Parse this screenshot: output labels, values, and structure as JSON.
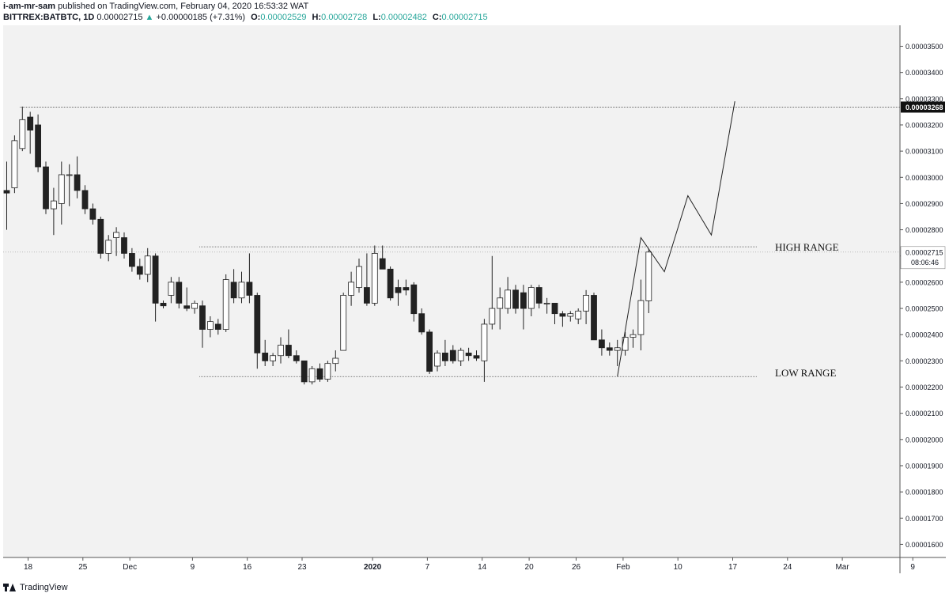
{
  "header": {
    "author": "i-am-mr-sam",
    "published": "published on TradingView.com, February 04, 2020 16:53:32 WAT",
    "symbol": "BITTREX:BATBTC, 1D",
    "close": "0.00002715",
    "change": "+0.00000185 (+7.31%)",
    "o_label": "O:",
    "o_value": "0.00002529",
    "h_label": "H:",
    "h_value": "0.00002728",
    "l_label": "L:",
    "l_value": "0.00002482",
    "c_label": "C:",
    "c_value": "0.00002715"
  },
  "footer": {
    "brand": "TradingView"
  },
  "colors": {
    "background": "#f2f2f2",
    "bull_body": "#ffffff",
    "bear_body": "#222222",
    "candle_outline": "#222222",
    "change_up": "#26a69a",
    "price_label_bg": "#111111"
  },
  "chart_data": {
    "type": "candlestick",
    "ylim": [
      1.55e-05,
      3.58e-05
    ],
    "y_ticks": [
      "0.00003500",
      "0.00003400",
      "0.00003300",
      "0.00003200",
      "0.00003100",
      "0.00003000",
      "0.00002900",
      "0.00002800",
      "0.00002700",
      "0.00002600",
      "0.00002500",
      "0.00002400",
      "0.00002300",
      "0.00002200",
      "0.00002100",
      "0.00002000",
      "0.00001900",
      "0.00001800",
      "0.00001700",
      "0.00001600"
    ],
    "x_ticks": [
      "18",
      "25",
      "Dec",
      "9",
      "16",
      "23",
      "2020",
      "7",
      "14",
      "20",
      "26",
      "Feb",
      "10",
      "17",
      "24",
      "Mar",
      "9"
    ],
    "x_tick_day_index": [
      0,
      7,
      13,
      21,
      28,
      35,
      44,
      51,
      58,
      64,
      70,
      76,
      83,
      90,
      97,
      104,
      113
    ],
    "price_label_current": "0.00002715",
    "countdown": "08:06:46",
    "price_label_target": "0.00003268",
    "annotations": {
      "high_range": {
        "text": "HIGH RANGE",
        "price": 2.735e-05,
        "from_day": 10,
        "to_day": 109
      },
      "low_range": {
        "text": "LOW RANGE",
        "price": 2.24e-05,
        "from_day": 10,
        "to_day": 109
      },
      "target_line": {
        "price": 3.268e-05,
        "from_day": 0,
        "to_day": 113
      }
    },
    "projection": [
      {
        "day": 78,
        "price": 2.24e-05
      },
      {
        "day": 81,
        "price": 2.77e-05
      },
      {
        "day": 84,
        "price": 2.64e-05
      },
      {
        "day": 87,
        "price": 2.93e-05
      },
      {
        "day": 90,
        "price": 2.78e-05
      },
      {
        "day": 93,
        "price": 3.29e-05
      }
    ],
    "candles": [
      {
        "o": 2.95e-05,
        "h": 3.06e-05,
        "l": 2.8e-05,
        "c": 2.94e-05
      },
      {
        "o": 2.96e-05,
        "h": 3.16e-05,
        "l": 2.94e-05,
        "c": 3.14e-05
      },
      {
        "o": 3.11e-05,
        "h": 3.27e-05,
        "l": 3.1e-05,
        "c": 3.22e-05
      },
      {
        "o": 3.23e-05,
        "h": 3.25e-05,
        "l": 3.09e-05,
        "c": 3.18e-05
      },
      {
        "o": 3.2e-05,
        "h": 3.24e-05,
        "l": 3.02e-05,
        "c": 3.04e-05
      },
      {
        "o": 3.04e-05,
        "h": 3.06e-05,
        "l": 2.86e-05,
        "c": 2.88e-05
      },
      {
        "o": 2.88e-05,
        "h": 2.96e-05,
        "l": 2.78e-05,
        "c": 2.91e-05
      },
      {
        "o": 2.9e-05,
        "h": 3.06e-05,
        "l": 2.82e-05,
        "c": 3.01e-05
      },
      {
        "o": 3.01e-05,
        "h": 3.05e-05,
        "l": 2.89e-05,
        "c": 3.01e-05
      },
      {
        "o": 3.01e-05,
        "h": 3.08e-05,
        "l": 2.92e-05,
        "c": 2.95e-05
      },
      {
        "o": 2.95e-05,
        "h": 2.97e-05,
        "l": 2.86e-05,
        "c": 2.88e-05
      },
      {
        "o": 2.88e-05,
        "h": 2.9e-05,
        "l": 2.82e-05,
        "c": 2.84e-05
      },
      {
        "o": 2.84e-05,
        "h": 2.85e-05,
        "l": 2.69e-05,
        "c": 2.71e-05
      },
      {
        "o": 2.71e-05,
        "h": 2.78e-05,
        "l": 2.68e-05,
        "c": 2.76e-05
      },
      {
        "o": 2.77e-05,
        "h": 2.81e-05,
        "l": 2.7e-05,
        "c": 2.79e-05
      },
      {
        "o": 2.77e-05,
        "h": 2.79e-05,
        "l": 2.69e-05,
        "c": 2.71e-05
      },
      {
        "o": 2.71e-05,
        "h": 2.73e-05,
        "l": 2.64e-05,
        "c": 2.66e-05
      },
      {
        "o": 2.66e-05,
        "h": 2.69e-05,
        "l": 2.61e-05,
        "c": 2.63e-05
      },
      {
        "o": 2.63e-05,
        "h": 2.73e-05,
        "l": 2.6e-05,
        "c": 2.7e-05
      },
      {
        "o": 2.7e-05,
        "h": 2.71e-05,
        "l": 2.45e-05,
        "c": 2.52e-05
      },
      {
        "o": 2.52e-05,
        "h": 2.53e-05,
        "l": 2.5e-05,
        "c": 2.51e-05
      },
      {
        "o": 2.55e-05,
        "h": 2.62e-05,
        "l": 2.52e-05,
        "c": 2.6e-05
      },
      {
        "o": 2.6e-05,
        "h": 2.62e-05,
        "l": 2.5e-05,
        "c": 2.52e-05
      },
      {
        "o": 2.51e-05,
        "h": 2.58e-05,
        "l": 2.49e-05,
        "c": 2.5e-05
      },
      {
        "o": 2.5e-05,
        "h": 2.53e-05,
        "l": 2.48e-05,
        "c": 2.52e-05
      },
      {
        "o": 2.51e-05,
        "h": 2.53e-05,
        "l": 2.35e-05,
        "c": 2.42e-05
      },
      {
        "o": 2.42e-05,
        "h": 2.47e-05,
        "l": 2.39e-05,
        "c": 2.45e-05
      },
      {
        "o": 2.44e-05,
        "h": 2.46e-05,
        "l": 2.4e-05,
        "c": 2.42e-05
      },
      {
        "o": 2.42e-05,
        "h": 2.63e-05,
        "l": 2.41e-05,
        "c": 2.61e-05
      },
      {
        "o": 2.6e-05,
        "h": 2.65e-05,
        "l": 2.52e-05,
        "c": 2.54e-05
      },
      {
        "o": 2.54e-05,
        "h": 2.64e-05,
        "l": 2.52e-05,
        "c": 2.6e-05
      },
      {
        "o": 2.6e-05,
        "h": 2.71e-05,
        "l": 2.52e-05,
        "c": 2.55e-05
      },
      {
        "o": 2.55e-05,
        "h": 2.56e-05,
        "l": 2.27e-05,
        "c": 2.33e-05
      },
      {
        "o": 2.33e-05,
        "h": 2.38e-05,
        "l": 2.28e-05,
        "c": 2.3e-05
      },
      {
        "o": 2.3e-05,
        "h": 2.33e-05,
        "l": 2.28e-05,
        "c": 2.32e-05
      },
      {
        "o": 2.32e-05,
        "h": 2.39e-05,
        "l": 2.29e-05,
        "c": 2.36e-05
      },
      {
        "o": 2.36e-05,
        "h": 2.42e-05,
        "l": 2.31e-05,
        "c": 2.32e-05
      },
      {
        "o": 2.32e-05,
        "h": 2.34e-05,
        "l": 2.29e-05,
        "c": 2.3e-05
      },
      {
        "o": 2.3e-05,
        "h": 2.3e-05,
        "l": 2.21e-05,
        "c": 2.22e-05
      },
      {
        "o": 2.22e-05,
        "h": 2.28e-05,
        "l": 2.21e-05,
        "c": 2.27e-05
      },
      {
        "o": 2.27e-05,
        "h": 2.29e-05,
        "l": 2.22e-05,
        "c": 2.23e-05
      },
      {
        "o": 2.23e-05,
        "h": 2.3e-05,
        "l": 2.22e-05,
        "c": 2.29e-05
      },
      {
        "o": 2.29e-05,
        "h": 2.34e-05,
        "l": 2.26e-05,
        "c": 2.31e-05
      },
      {
        "o": 2.34e-05,
        "h": 2.56e-05,
        "l": 2.34e-05,
        "c": 2.55e-05
      },
      {
        "o": 2.55e-05,
        "h": 2.64e-05,
        "l": 2.51e-05,
        "c": 2.6e-05
      },
      {
        "o": 2.58e-05,
        "h": 2.69e-05,
        "l": 2.56e-05,
        "c": 2.66e-05
      },
      {
        "o": 2.58e-05,
        "h": 2.71e-05,
        "l": 2.51e-05,
        "c": 2.52e-05
      },
      {
        "o": 2.52e-05,
        "h": 2.74e-05,
        "l": 2.51e-05,
        "c": 2.71e-05
      },
      {
        "o": 2.69e-05,
        "h": 2.74e-05,
        "l": 2.65e-05,
        "c": 2.65e-05
      },
      {
        "o": 2.65e-05,
        "h": 2.66e-05,
        "l": 2.53e-05,
        "c": 2.54e-05
      },
      {
        "o": 2.58e-05,
        "h": 2.61e-05,
        "l": 2.51e-05,
        "c": 2.56e-05
      },
      {
        "o": 2.58e-05,
        "h": 2.61e-05,
        "l": 2.55e-05,
        "c": 2.57e-05
      },
      {
        "o": 2.59e-05,
        "h": 2.6e-05,
        "l": 2.45e-05,
        "c": 2.48e-05
      },
      {
        "o": 2.48e-05,
        "h": 2.5e-05,
        "l": 2.4e-05,
        "c": 2.41e-05
      },
      {
        "o": 2.41e-05,
        "h": 2.42e-05,
        "l": 2.25e-05,
        "c": 2.26e-05
      },
      {
        "o": 2.28e-05,
        "h": 2.34e-05,
        "l": 2.26e-05,
        "c": 2.33e-05
      },
      {
        "o": 2.33e-05,
        "h": 2.38e-05,
        "l": 2.28e-05,
        "c": 2.3e-05
      },
      {
        "o": 2.34e-05,
        "h": 2.36e-05,
        "l": 2.29e-05,
        "c": 2.3e-05
      },
      {
        "o": 2.3e-05,
        "h": 2.35e-05,
        "l": 2.28e-05,
        "c": 2.34e-05
      },
      {
        "o": 2.33e-05,
        "h": 2.35e-05,
        "l": 2.3e-05,
        "c": 2.32e-05
      },
      {
        "o": 2.32e-05,
        "h": 2.34e-05,
        "l": 2.3e-05,
        "c": 2.31e-05
      },
      {
        "o": 2.3e-05,
        "h": 2.46e-05,
        "l": 2.22e-05,
        "c": 2.44e-05
      },
      {
        "o": 2.44e-05,
        "h": 2.7e-05,
        "l": 2.42e-05,
        "c": 2.5e-05
      },
      {
        "o": 2.5e-05,
        "h": 2.58e-05,
        "l": 2.42e-05,
        "c": 2.54e-05
      },
      {
        "o": 2.5e-05,
        "h": 2.62e-05,
        "l": 2.48e-05,
        "c": 2.57e-05
      },
      {
        "o": 2.57e-05,
        "h": 2.59e-05,
        "l": 2.48e-05,
        "c": 2.5e-05
      },
      {
        "o": 2.56e-05,
        "h": 2.59e-05,
        "l": 2.42e-05,
        "c": 2.5e-05
      },
      {
        "o": 2.5e-05,
        "h": 2.59e-05,
        "l": 2.47e-05,
        "c": 2.58e-05
      },
      {
        "o": 2.58e-05,
        "h": 2.59e-05,
        "l": 2.5e-05,
        "c": 2.52e-05
      },
      {
        "o": 2.52e-05,
        "h": 2.54e-05,
        "l": 2.48e-05,
        "c": 2.52e-05
      },
      {
        "o": 2.52e-05,
        "h": 2.52e-05,
        "l": 2.44e-05,
        "c": 2.48e-05
      },
      {
        "o": 2.48e-05,
        "h": 2.49e-05,
        "l": 2.43e-05,
        "c": 2.47e-05
      },
      {
        "o": 2.47e-05,
        "h": 2.49e-05,
        "l": 2.45e-05,
        "c": 2.48e-05
      },
      {
        "o": 2.46e-05,
        "h": 2.5e-05,
        "l": 2.44e-05,
        "c": 2.49e-05
      },
      {
        "o": 2.49e-05,
        "h": 2.57e-05,
        "l": 2.44e-05,
        "c": 2.55e-05
      },
      {
        "o": 2.55e-05,
        "h": 2.56e-05,
        "l": 2.38e-05,
        "c": 2.38e-05
      },
      {
        "o": 2.38e-05,
        "h": 2.42e-05,
        "l": 2.32e-05,
        "c": 2.35e-05
      },
      {
        "o": 2.35e-05,
        "h": 2.37e-05,
        "l": 2.32e-05,
        "c": 2.34e-05
      },
      {
        "o": 2.34e-05,
        "h": 2.38e-05,
        "l": 2.28e-05,
        "c": 2.35e-05
      },
      {
        "o": 2.34e-05,
        "h": 2.41e-05,
        "l": 2.32e-05,
        "c": 2.39e-05
      },
      {
        "o": 2.39e-05,
        "h": 2.42e-05,
        "l": 2.35e-05,
        "c": 2.4e-05
      },
      {
        "o": 2.4e-05,
        "h": 2.61e-05,
        "l": 2.34e-05,
        "c": 2.53e-05
      },
      {
        "o": 2.529e-05,
        "h": 2.728e-05,
        "l": 2.482e-05,
        "c": 2.715e-05
      }
    ]
  }
}
